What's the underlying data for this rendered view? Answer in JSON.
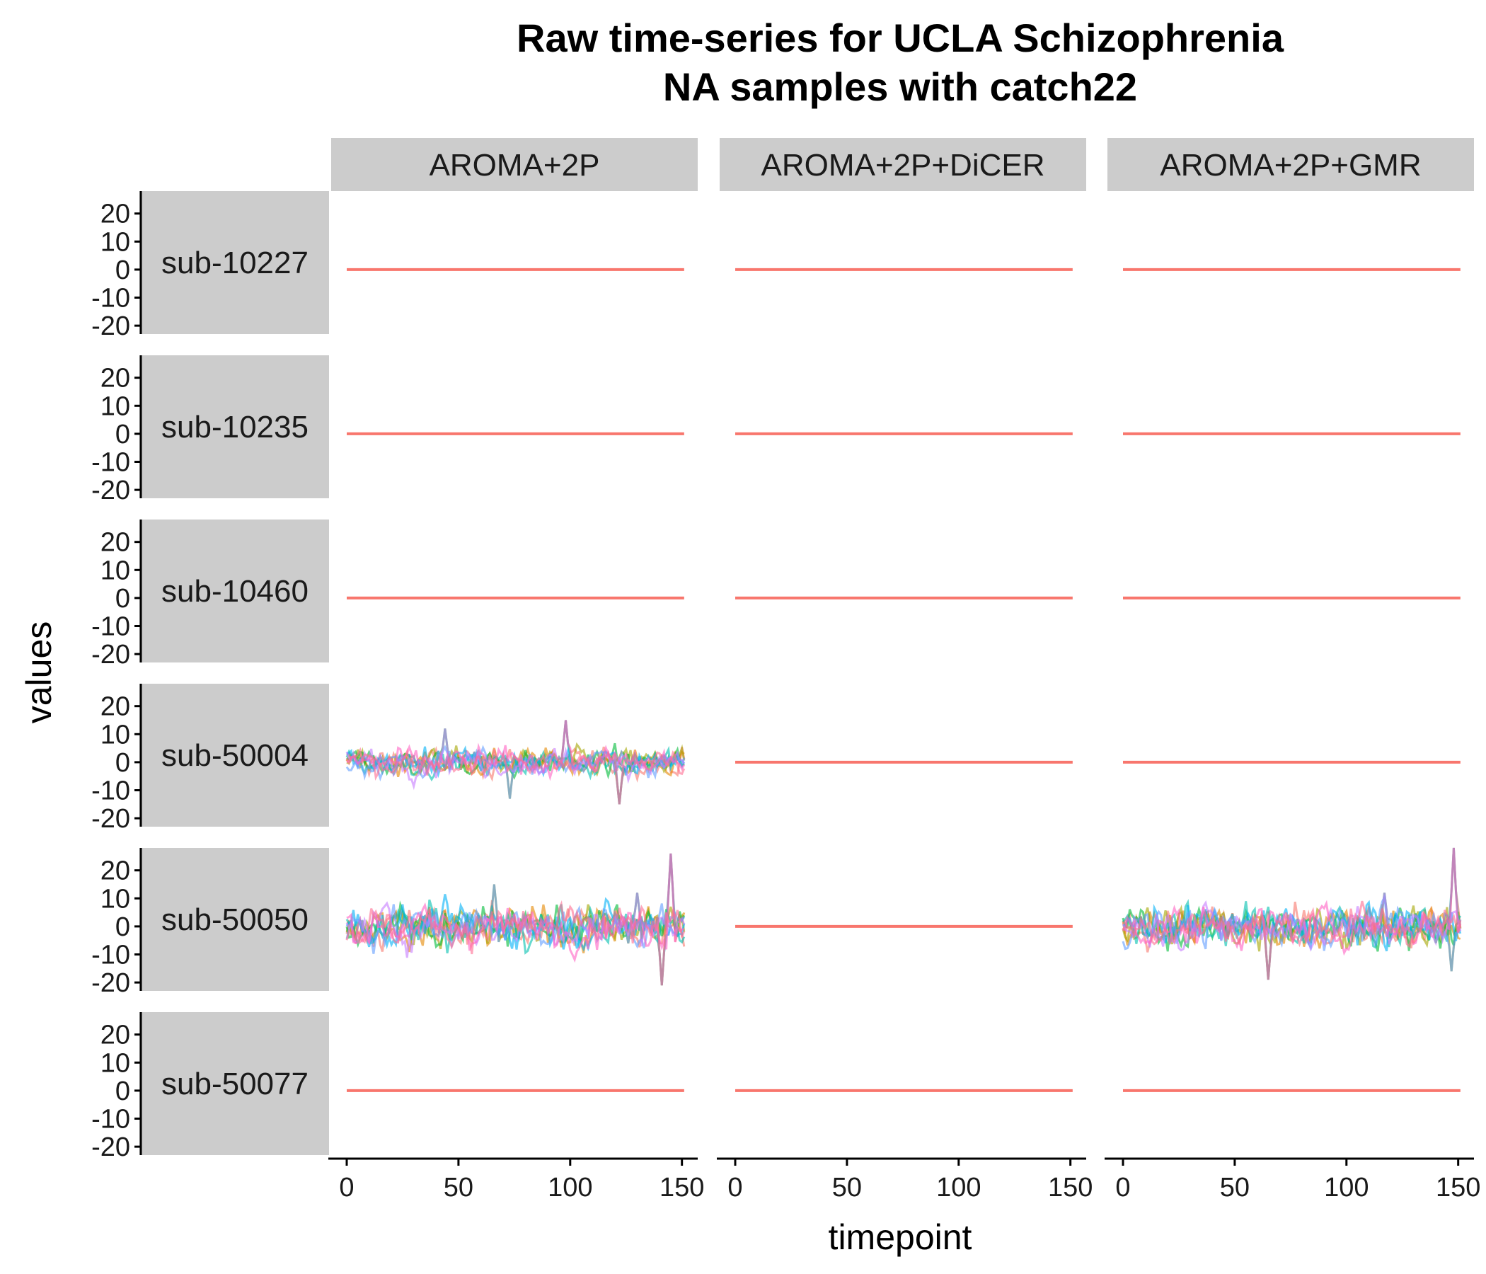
{
  "chart_data": {
    "type": "line",
    "title": "Raw time-series for UCLA Schizophrenia\nNA samples with catch22",
    "xlabel": "timepoint",
    "ylabel": "values",
    "xlim": [
      0,
      152
    ],
    "ylim": [
      -23,
      28
    ],
    "x_ticks": [
      0,
      50,
      100,
      150
    ],
    "y_ticks": [
      20,
      10,
      0,
      -10,
      -20
    ],
    "columns": [
      "AROMA+2P",
      "AROMA+2P+DiCER",
      "AROMA+2P+GMR"
    ],
    "rows": [
      "sub-10227",
      "sub-10235",
      "sub-10460",
      "sub-50004",
      "sub-50050",
      "sub-50077"
    ],
    "flat_series": {
      "color": "#F8766D",
      "x_start": 0,
      "x_end": 151,
      "value": 0
    },
    "noisy_palette": [
      "#F8766D",
      "#E58700",
      "#A3A500",
      "#00BA38",
      "#00C0AF",
      "#00B0F6",
      "#619CFF",
      "#C77CFF",
      "#FF61C3",
      "#FF6C91"
    ],
    "panels": [
      {
        "row": "sub-10227",
        "column": "AROMA+2P",
        "kind": "flat"
      },
      {
        "row": "sub-10227",
        "column": "AROMA+2P+DiCER",
        "kind": "flat"
      },
      {
        "row": "sub-10227",
        "column": "AROMA+2P+GMR",
        "kind": "flat"
      },
      {
        "row": "sub-10235",
        "column": "AROMA+2P",
        "kind": "flat"
      },
      {
        "row": "sub-10235",
        "column": "AROMA+2P+DiCER",
        "kind": "flat"
      },
      {
        "row": "sub-10235",
        "column": "AROMA+2P+GMR",
        "kind": "flat"
      },
      {
        "row": "sub-10460",
        "column": "AROMA+2P",
        "kind": "flat"
      },
      {
        "row": "sub-10460",
        "column": "AROMA+2P+DiCER",
        "kind": "flat"
      },
      {
        "row": "sub-10460",
        "column": "AROMA+2P+GMR",
        "kind": "flat"
      },
      {
        "row": "sub-50004",
        "column": "AROMA+2P",
        "kind": "noisy",
        "approx_range": [
          -15,
          15
        ],
        "spikes": [
          {
            "x": 98,
            "y": 15
          },
          {
            "x": 122,
            "y": -16
          },
          {
            "x": 73,
            "y": -13
          },
          {
            "x": 44,
            "y": 12
          }
        ]
      },
      {
        "row": "sub-50004",
        "column": "AROMA+2P+DiCER",
        "kind": "flat"
      },
      {
        "row": "sub-50004",
        "column": "AROMA+2P+GMR",
        "kind": "flat"
      },
      {
        "row": "sub-50050",
        "column": "AROMA+2P",
        "kind": "noisy",
        "approx_range": [
          -21,
          26
        ],
        "spikes": [
          {
            "x": 145,
            "y": 26
          },
          {
            "x": 141,
            "y": -21
          },
          {
            "x": 66,
            "y": 15
          },
          {
            "x": 130,
            "y": 12
          }
        ]
      },
      {
        "row": "sub-50050",
        "column": "AROMA+2P+DiCER",
        "kind": "flat"
      },
      {
        "row": "sub-50050",
        "column": "AROMA+2P+GMR",
        "kind": "noisy",
        "approx_range": [
          -19,
          28
        ],
        "spikes": [
          {
            "x": 148,
            "y": 28
          },
          {
            "x": 65,
            "y": -19
          },
          {
            "x": 147,
            "y": -16
          },
          {
            "x": 117,
            "y": 12
          }
        ]
      },
      {
        "row": "sub-50077",
        "column": "AROMA+2P",
        "kind": "flat"
      },
      {
        "row": "sub-50077",
        "column": "AROMA+2P+DiCER",
        "kind": "flat"
      },
      {
        "row": "sub-50077",
        "column": "AROMA+2P+GMR",
        "kind": "flat"
      }
    ],
    "grid": false,
    "legend": "none"
  }
}
